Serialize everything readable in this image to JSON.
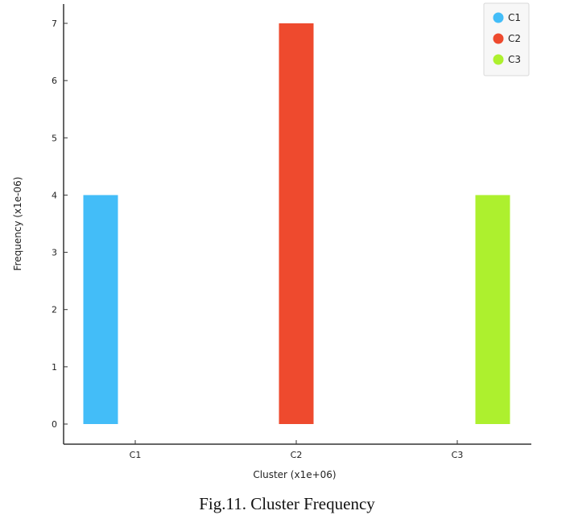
{
  "caption": "Fig.11. Cluster Frequency",
  "chart_data": {
    "type": "bar",
    "categories": [
      "C1",
      "C2",
      "C3"
    ],
    "values": [
      4,
      7,
      4
    ],
    "colors": [
      "#43bdf8",
      "#ee4a2e",
      "#adf02e"
    ],
    "xlabel": "Cluster (x1e+06)",
    "ylabel": "Frequency (x1e-06)",
    "ylim": [
      0,
      7
    ],
    "yticks": [
      0,
      1,
      2,
      3,
      4,
      5,
      6,
      7
    ],
    "grid": false,
    "legend": {
      "position": "top-right",
      "entries": [
        "C1",
        "C2",
        "C3"
      ]
    }
  }
}
